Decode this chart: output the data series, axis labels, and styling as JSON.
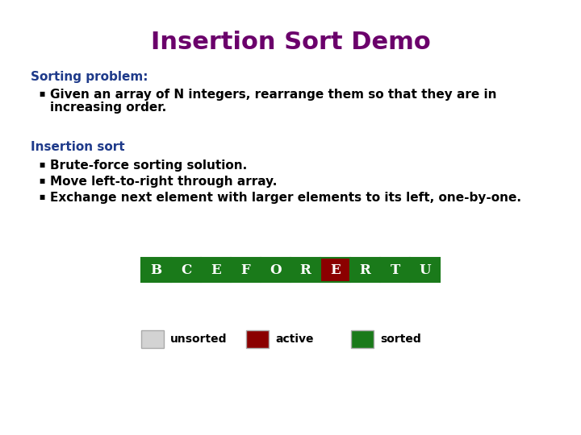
{
  "title": "Insertion Sort Demo",
  "title_color": "#6B006B",
  "title_fontsize": 22,
  "section1_label": "Sorting problem:",
  "section1_color": "#1E3A8A",
  "section1_fontsize": 11,
  "section1_bullet_line1": "Given an array of N integers, rearrange them so that they are in",
  "section1_bullet_line2": "increasing order.",
  "section2_label": "Insertion sort",
  "section2_color": "#1E3A8A",
  "section2_fontsize": 11,
  "section2_bullets": [
    "Brute-force sorting solution.",
    "Move left-to-right through array.",
    "Exchange next element with larger elements to its left, one-by-one."
  ],
  "array_letters": [
    "B",
    "C",
    "E",
    "F",
    "O",
    "R",
    "E",
    "R",
    "T",
    "U"
  ],
  "array_colors": [
    "#1a7a1a",
    "#1a7a1a",
    "#1a7a1a",
    "#1a7a1a",
    "#1a7a1a",
    "#1a7a1a",
    "#8B0000",
    "#1a7a1a",
    "#1a7a1a",
    "#1a7a1a"
  ],
  "array_border_color": "#1a7a1a",
  "array_text_color": "#FFFFFF",
  "legend_items": [
    {
      "label": "unsorted",
      "color": "#D3D3D3"
    },
    {
      "label": "active",
      "color": "#8B0000"
    },
    {
      "label": "sorted",
      "color": "#1a7a1a"
    }
  ],
  "bg_color": "#FFFFFF",
  "bullet_color": "#000000",
  "text_fontsize": 11,
  "legend_fontsize": 10
}
